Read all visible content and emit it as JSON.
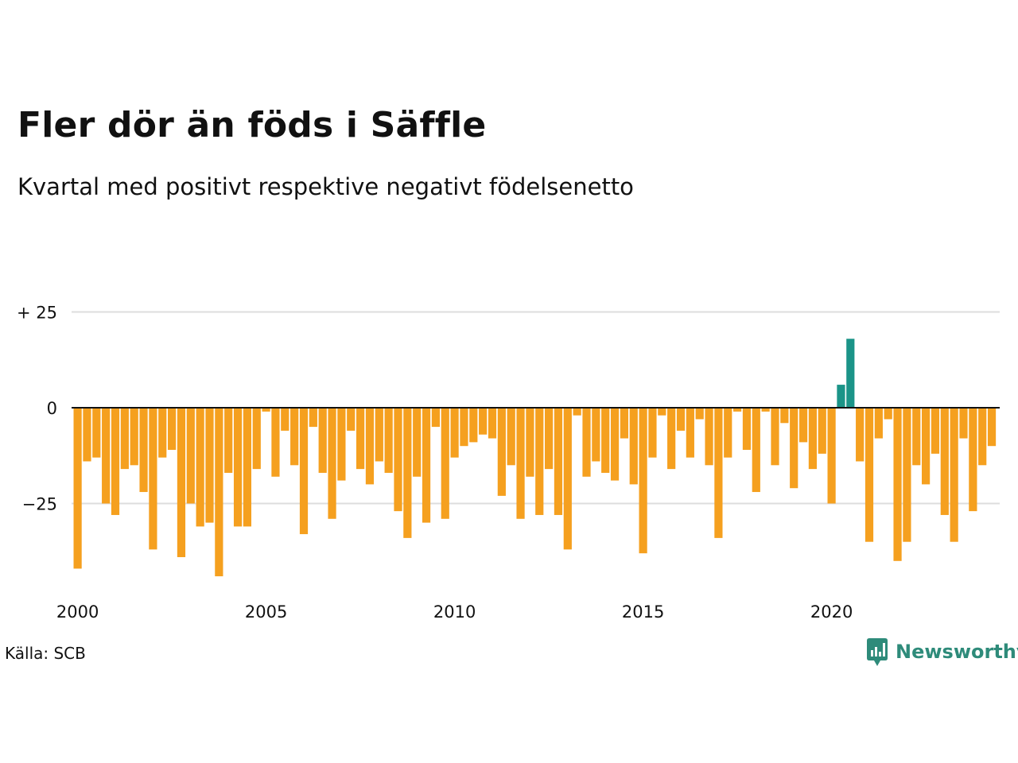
{
  "title": "Fler dör än föds i Säffle",
  "subtitle": "Kvartal med positivt respektive negativt födelsenetto",
  "source": "Källa: SCB",
  "brand": {
    "name": "Newsworthy",
    "icon": "newsworthy-logo-icon",
    "color": "#2e8b7a"
  },
  "colors": {
    "negative": "#f5a01f",
    "positive": "#1b9488",
    "grid": "#dddddd",
    "zero_line": "#111111"
  },
  "chart_data": {
    "type": "bar",
    "title": "",
    "xlabel": "",
    "ylabel": "",
    "ylim": [
      -42,
      30
    ],
    "grid": true,
    "y_ticks": [
      {
        "value": 25,
        "label": "+ 25"
      },
      {
        "value": 0,
        "label": "0"
      },
      {
        "value": -25,
        "label": "−25"
      }
    ],
    "x_ticks": [
      {
        "value": 2000,
        "label": "2000"
      },
      {
        "value": 2005,
        "label": "2005"
      },
      {
        "value": 2010,
        "label": "2010"
      },
      {
        "value": 2015,
        "label": "2015"
      },
      {
        "value": 2020,
        "label": "2020"
      }
    ],
    "first_quarter": "2000 Q1",
    "series": [
      {
        "values": [
          -42,
          -14,
          -13,
          -25,
          -28,
          -16,
          -15,
          -22,
          -37,
          -13,
          -11,
          -39,
          -25,
          -31,
          -30,
          -44,
          -17,
          -31,
          -31,
          -16,
          -1,
          -18,
          -6,
          -15,
          -33,
          -5,
          -17,
          -29,
          -19,
          -6,
          -16,
          -20,
          -14,
          -17,
          -27,
          -34,
          -18,
          -30,
          -5,
          -29,
          -13,
          -10,
          -9,
          -7,
          -8,
          -23,
          -15,
          -29,
          -18,
          -28,
          -16,
          -28,
          -37,
          -2,
          -18,
          -14,
          -17,
          -19,
          -8,
          -20,
          -38,
          -13,
          -2,
          -16,
          -6,
          -13,
          -3,
          -15,
          -34,
          -13,
          -1,
          -11,
          -22,
          -1,
          -15,
          -4,
          -21,
          -9,
          -16,
          -12,
          -25,
          6,
          18,
          -14,
          -35,
          -8,
          -3,
          -40,
          -35,
          -15,
          -20,
          -12,
          -28,
          -35,
          -8,
          -27,
          -15,
          -10
        ]
      }
    ]
  }
}
